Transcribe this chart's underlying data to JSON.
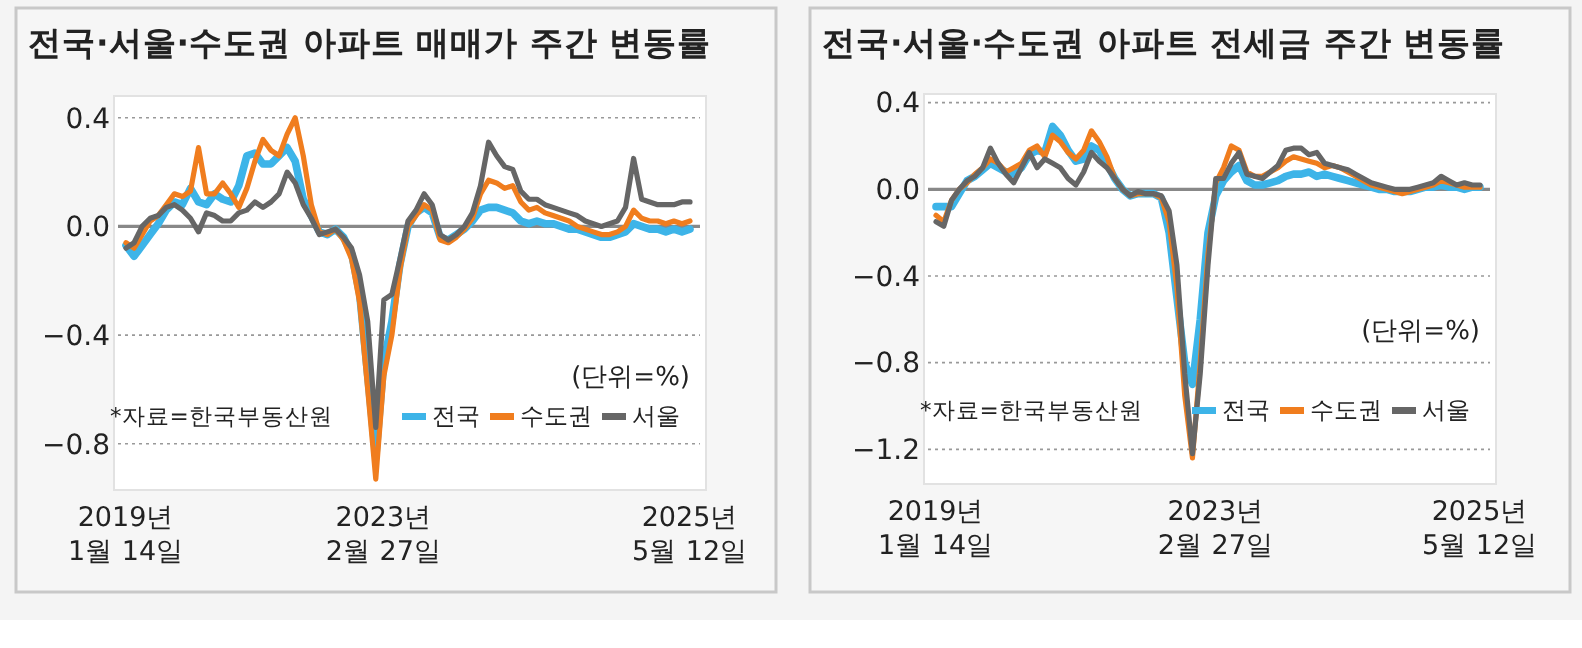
{
  "chart_data": [
    {
      "type": "line",
      "title": "전국·서울·수도권 아파트 매매가 주간 변동률",
      "categories": [
        "2019년\n1월 14일",
        null,
        null,
        null,
        null,
        null,
        null,
        null,
        null,
        null,
        null,
        null,
        null,
        null,
        null,
        null,
        null,
        null,
        null,
        null,
        null,
        null,
        null,
        null,
        null,
        null,
        null,
        null,
        null,
        null,
        null,
        null,
        "2023년\n2월 27일",
        null,
        null,
        null,
        null,
        null,
        null,
        null,
        null,
        null,
        null,
        null,
        null,
        null,
        null,
        null,
        null,
        null,
        null,
        null,
        null,
        null,
        null,
        null,
        null,
        null,
        null,
        null,
        null,
        null,
        null,
        null,
        null,
        null,
        null,
        null,
        null,
        null,
        "2025년\n5월 12일"
      ],
      "series": [
        {
          "name": "전국",
          "color": "#3db4e8",
          "values": [
            -0.07,
            -0.11,
            -0.07,
            -0.03,
            0.01,
            0.06,
            0.09,
            0.08,
            0.14,
            0.09,
            0.08,
            0.12,
            0.1,
            0.09,
            0.15,
            0.26,
            0.27,
            0.23,
            0.23,
            0.26,
            0.29,
            0.24,
            0.1,
            0.04,
            -0.02,
            -0.03,
            -0.01,
            -0.04,
            -0.1,
            -0.25,
            -0.55,
            -0.85,
            -0.5,
            -0.35,
            -0.14,
            0.0,
            0.05,
            0.07,
            0.05,
            -0.04,
            -0.05,
            -0.03,
            -0.01,
            0.02,
            0.06,
            0.07,
            0.07,
            0.06,
            0.05,
            0.02,
            0.01,
            0.02,
            0.01,
            0.01,
            0.0,
            -0.01,
            -0.01,
            -0.02,
            -0.03,
            -0.04,
            -0.04,
            -0.03,
            -0.02,
            0.01,
            0.0,
            -0.01,
            -0.01,
            -0.02,
            -0.01,
            -0.02,
            -0.01
          ]
        },
        {
          "name": "수도권",
          "color": "#f07d1e",
          "values": [
            -0.06,
            -0.08,
            -0.03,
            0.02,
            0.04,
            0.08,
            0.12,
            0.11,
            0.13,
            0.29,
            0.12,
            0.12,
            0.16,
            0.12,
            0.07,
            0.14,
            0.24,
            0.32,
            0.28,
            0.26,
            0.34,
            0.4,
            0.26,
            0.08,
            -0.02,
            -0.03,
            -0.01,
            -0.05,
            -0.12,
            -0.28,
            -0.6,
            -0.93,
            -0.55,
            -0.4,
            -0.16,
            0.0,
            0.04,
            0.08,
            0.06,
            -0.05,
            -0.06,
            -0.04,
            -0.01,
            0.03,
            0.12,
            0.17,
            0.16,
            0.14,
            0.15,
            0.09,
            0.06,
            0.07,
            0.05,
            0.04,
            0.03,
            0.02,
            0.0,
            -0.01,
            -0.02,
            -0.03,
            -0.03,
            -0.02,
            0.0,
            0.06,
            0.03,
            0.02,
            0.02,
            0.01,
            0.02,
            0.01,
            0.02
          ]
        },
        {
          "name": "서울",
          "color": "#666666",
          "values": [
            -0.08,
            -0.06,
            0.0,
            0.03,
            0.04,
            0.07,
            0.08,
            0.06,
            0.03,
            -0.02,
            0.05,
            0.04,
            0.02,
            0.02,
            0.05,
            0.06,
            0.09,
            0.07,
            0.09,
            0.12,
            0.2,
            0.16,
            0.08,
            0.03,
            -0.03,
            -0.02,
            -0.01,
            -0.04,
            -0.08,
            -0.18,
            -0.35,
            -0.74,
            -0.27,
            -0.25,
            -0.12,
            0.02,
            0.06,
            0.12,
            0.08,
            -0.03,
            -0.05,
            -0.03,
            0.0,
            0.05,
            0.15,
            0.31,
            0.26,
            0.22,
            0.21,
            0.13,
            0.1,
            0.1,
            0.08,
            0.07,
            0.06,
            0.05,
            0.04,
            0.02,
            0.01,
            0.0,
            0.01,
            0.02,
            0.07,
            0.25,
            0.1,
            0.09,
            0.08,
            0.08,
            0.08,
            0.09,
            0.09
          ]
        }
      ],
      "ylim": [
        -0.97,
        0.48
      ],
      "yticks": [
        {
          "value": 0.4,
          "label": "0.4"
        },
        {
          "value": 0,
          "label": "0.0"
        },
        {
          "value": -0.4,
          "label": "−0.4"
        },
        {
          "value": -0.8,
          "label": "−0.8"
        }
      ],
      "grid": "y",
      "ref_lines": [
        {
          "axis": "y",
          "value": 0,
          "color": "#888888"
        }
      ],
      "legend": "bottom right",
      "annotations": [
        "(단위=%)",
        "*자료=한국부동산원"
      ]
    },
    {
      "type": "line",
      "title": "전국·서울·수도권 아파트 전세금 주간 변동률",
      "categories": [
        "2019년\n1월 14일",
        null,
        null,
        null,
        null,
        null,
        null,
        null,
        null,
        null,
        null,
        null,
        null,
        null,
        null,
        null,
        null,
        null,
        null,
        null,
        null,
        null,
        null,
        null,
        null,
        null,
        null,
        null,
        null,
        null,
        null,
        null,
        null,
        null,
        null,
        null,
        "2023년\n2월 27일",
        null,
        null,
        null,
        null,
        null,
        null,
        null,
        null,
        null,
        null,
        null,
        null,
        null,
        null,
        null,
        null,
        null,
        null,
        null,
        null,
        null,
        null,
        null,
        null,
        null,
        null,
        null,
        null,
        null,
        null,
        null,
        null,
        null,
        "2025년\n5월 12일"
      ],
      "series": [
        {
          "name": "전국",
          "color": "#3db4e8",
          "values": [
            -0.08,
            -0.08,
            -0.08,
            -0.02,
            0.04,
            0.06,
            0.09,
            0.12,
            0.1,
            0.08,
            0.07,
            0.1,
            0.16,
            0.18,
            0.17,
            0.29,
            0.25,
            0.18,
            0.13,
            0.14,
            0.2,
            0.18,
            0.12,
            0.05,
            0.0,
            -0.03,
            -0.02,
            -0.02,
            -0.02,
            -0.04,
            -0.2,
            -0.5,
            -0.8,
            -0.9,
            -0.6,
            -0.2,
            -0.03,
            0.04,
            0.08,
            0.11,
            0.04,
            0.02,
            0.02,
            0.03,
            0.04,
            0.06,
            0.07,
            0.07,
            0.08,
            0.06,
            0.07,
            0.06,
            0.05,
            0.04,
            0.03,
            0.02,
            0.01,
            0.0,
            0.0,
            -0.01,
            -0.01,
            -0.01,
            0.0,
            0.01,
            0.01,
            0.02,
            0.01,
            0.01,
            0.0,
            0.01,
            0.01
          ]
        },
        {
          "name": "수도권",
          "color": "#f07d1e",
          "values": [
            -0.12,
            -0.15,
            -0.05,
            0.0,
            0.03,
            0.07,
            0.1,
            0.14,
            0.12,
            0.08,
            0.1,
            0.12,
            0.18,
            0.2,
            0.15,
            0.25,
            0.22,
            0.17,
            0.14,
            0.18,
            0.27,
            0.22,
            0.15,
            0.05,
            0.0,
            -0.03,
            -0.02,
            -0.02,
            -0.02,
            -0.04,
            -0.15,
            -0.45,
            -0.95,
            -1.24,
            -0.8,
            -0.3,
            0.03,
            0.1,
            0.2,
            0.18,
            0.08,
            0.06,
            0.06,
            0.08,
            0.1,
            0.13,
            0.15,
            0.14,
            0.13,
            0.12,
            0.1,
            0.11,
            0.1,
            0.08,
            0.06,
            0.04,
            0.02,
            0.01,
            0.0,
            -0.01,
            -0.02,
            -0.01,
            0.0,
            0.01,
            0.02,
            0.04,
            0.03,
            0.02,
            0.01,
            0.01,
            0.01
          ]
        },
        {
          "name": "서울",
          "color": "#666666",
          "values": [
            -0.15,
            -0.17,
            -0.05,
            0.0,
            0.04,
            0.06,
            0.1,
            0.19,
            0.12,
            0.07,
            0.03,
            0.1,
            0.17,
            0.1,
            0.14,
            0.12,
            0.1,
            0.05,
            0.02,
            0.08,
            0.17,
            0.13,
            0.1,
            0.05,
            0.0,
            -0.03,
            -0.01,
            -0.02,
            -0.02,
            -0.03,
            -0.1,
            -0.35,
            -0.85,
            -1.22,
            -0.85,
            -0.35,
            0.05,
            0.05,
            0.12,
            0.17,
            0.07,
            0.06,
            0.05,
            0.08,
            0.11,
            0.18,
            0.19,
            0.19,
            0.16,
            0.17,
            0.12,
            0.11,
            0.1,
            0.09,
            0.07,
            0.05,
            0.03,
            0.02,
            0.01,
            0.0,
            0.0,
            0.0,
            0.01,
            0.02,
            0.03,
            0.06,
            0.04,
            0.02,
            0.03,
            0.02,
            0.02
          ]
        }
      ],
      "ylim": [
        -1.36,
        0.44
      ],
      "yticks": [
        {
          "value": 0.4,
          "label": "0.4"
        },
        {
          "value": 0,
          "label": "0.0"
        },
        {
          "value": -0.4,
          "label": "−0.4"
        },
        {
          "value": -0.8,
          "label": "−0.8"
        },
        {
          "value": -1.2,
          "label": "−1.2"
        }
      ],
      "grid": "y",
      "ref_lines": [
        {
          "axis": "y",
          "value": 0,
          "color": "#888888"
        }
      ],
      "legend": "bottom right",
      "annotations": [
        "(단위=%)",
        "*자료=한국부동산원"
      ]
    }
  ]
}
